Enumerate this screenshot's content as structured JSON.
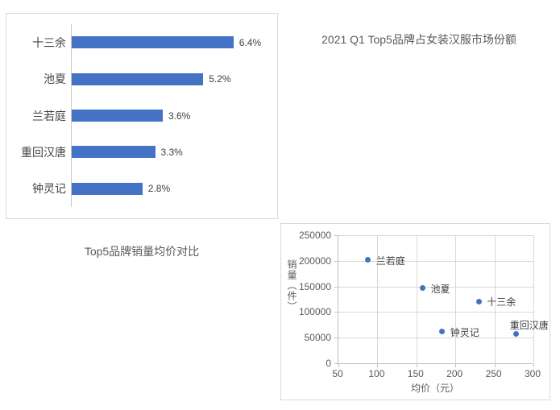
{
  "colors": {
    "accent_blue": "#4472C4",
    "panel_border": "#d9d9d9",
    "gridline": "#d9d9d9",
    "axis_line": "#bfbfbf",
    "title_text": "#595959",
    "label_text": "#3f3f3f"
  },
  "titles": {
    "bar_chart": "2021 Q1 Top5品牌占女装汉服市场份额",
    "scatter_chart": "Top5品牌销量均价对比"
  },
  "chart_data": [
    {
      "type": "bar",
      "orientation": "horizontal",
      "title": "2021 Q1 Top5品牌占女装汉服市场份额",
      "categories": [
        "十三余",
        "池夏",
        "兰若庭",
        "重回汉唐",
        "钟灵记"
      ],
      "values": [
        6.4,
        5.2,
        3.6,
        3.3,
        2.8
      ],
      "data_labels": [
        "6.4%",
        "5.2%",
        "3.6%",
        "3.3%",
        "2.8%"
      ],
      "unit": "%",
      "xlim": [
        0,
        8
      ],
      "grid": false,
      "legend": "none",
      "bar_color": "#4472C4"
    },
    {
      "type": "scatter",
      "title": "Top5品牌销量均价对比",
      "xlabel": "均价（元）",
      "ylabel": "销量（件）",
      "xlim": [
        50,
        300
      ],
      "ylim": [
        0,
        250000
      ],
      "x_ticks": [
        50,
        100,
        150,
        200,
        250,
        300
      ],
      "y_ticks": [
        0,
        50000,
        100000,
        150000,
        200000,
        250000
      ],
      "grid": true,
      "legend": "none",
      "point_color": "#4472C4",
      "points": [
        {
          "name": "兰若庭",
          "x": 88,
          "y": 202000,
          "label_pos": "right"
        },
        {
          "name": "池夏",
          "x": 158,
          "y": 147000,
          "label_pos": "right"
        },
        {
          "name": "十三余",
          "x": 230,
          "y": 121000,
          "label_pos": "right"
        },
        {
          "name": "钟灵记",
          "x": 183,
          "y": 62000,
          "label_pos": "right"
        },
        {
          "name": "重回汉唐",
          "x": 278,
          "y": 57000,
          "label_pos": "above"
        }
      ]
    }
  ]
}
